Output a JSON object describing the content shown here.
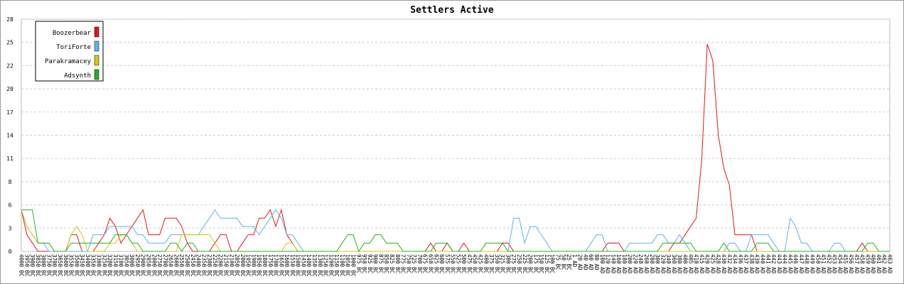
{
  "chart_data": {
    "type": "line",
    "title": "Settlers Active",
    "categories": [
      "4000 BC",
      "3950 BC",
      "3900 BC",
      "3850 BC",
      "3800 BC",
      "3750 BC",
      "3700 BC",
      "3650 BC",
      "3600 BC",
      "3550 BC",
      "3500 BC",
      "3450 BC",
      "3400 BC",
      "3350 BC",
      "3300 BC",
      "3250 BC",
      "3200 BC",
      "3150 BC",
      "3100 BC",
      "3050 BC",
      "3000 BC",
      "2950 BC",
      "2900 BC",
      "2850 BC",
      "2800 BC",
      "2750 BC",
      "2700 BC",
      "2650 BC",
      "2600 BC",
      "2550 BC",
      "2500 BC",
      "2450 BC",
      "2400 BC",
      "2350 BC",
      "2300 BC",
      "2250 BC",
      "2200 BC",
      "2150 BC",
      "2100 BC",
      "2050 BC",
      "2000 BC",
      "1950 BC",
      "1900 BC",
      "1850 BC",
      "1800 BC",
      "1750 BC",
      "1700 BC",
      "1650 BC",
      "1600 BC",
      "1550 BC",
      "1500 BC",
      "1450 BC",
      "1400 BC",
      "1350 BC",
      "1300 BC",
      "1250 BC",
      "1200 BC",
      "1150 BC",
      "1100 BC",
      "1050 BC",
      "1000 BC",
      "975 BC",
      "950 BC",
      "925 BC",
      "900 BC",
      "875 BC",
      "850 BC",
      "825 BC",
      "800 BC",
      "775 BC",
      "750 BC",
      "725 BC",
      "700 BC",
      "675 BC",
      "650 BC",
      "625 BC",
      "600 BC",
      "575 BC",
      "550 BC",
      "525 BC",
      "500 BC",
      "475 BC",
      "450 BC",
      "425 BC",
      "400 BC",
      "375 BC",
      "350 BC",
      "325 BC",
      "300 BC",
      "275 BC",
      "250 BC",
      "225 BC",
      "200 BC",
      "175 BC",
      "150 BC",
      "125 BC",
      "100 BC",
      "75 BC",
      "50 BC",
      "25 BC",
      "1 AD",
      "20 AD",
      "40 AD",
      "60 AD",
      "80 AD",
      "100 AD",
      "120 AD",
      "140 AD",
      "160 AD",
      "180 AD",
      "200 AD",
      "220 AD",
      "240 AD",
      "260 AD",
      "280 AD",
      "300 AD",
      "320 AD",
      "340 AD",
      "360 AD",
      "380 AD",
      "400 AD",
      "405 AD",
      "410 AD",
      "415 AD",
      "420 AD",
      "425 AD",
      "428 AD",
      "430 AD",
      "432 AD",
      "434 AD",
      "436 AD",
      "437 AD",
      "438 AD",
      "439 AD",
      "440 AD",
      "441 AD",
      "442 AD",
      "443 AD",
      "444 AD",
      "445 AD",
      "446 AD",
      "447 AD",
      "448 AD",
      "449 AD",
      "450 AD",
      "451 AD",
      "452 AD",
      "453 AD",
      "454 AD",
      "455 AD",
      "456 AD",
      "457 AD",
      "458 AD",
      "459 AD",
      "460 AD",
      "461 AD",
      "462 AD",
      "463 AD"
    ],
    "series": [
      {
        "name": "Boozerbear",
        "color": "#e0161d",
        "values": [
          5,
          2,
          1,
          0,
          0,
          0,
          0,
          0,
          0,
          2,
          2,
          0,
          0,
          0,
          1,
          2,
          4,
          3,
          1,
          2,
          3,
          4,
          5,
          2,
          2,
          2,
          4,
          4,
          4,
          3,
          1,
          0,
          0,
          0,
          0,
          1,
          2,
          2,
          0,
          0,
          1,
          2,
          2,
          4,
          4,
          5,
          3,
          5,
          2,
          1,
          0,
          0,
          0,
          0,
          0,
          0,
          0,
          0,
          0,
          0,
          0,
          0,
          0,
          0,
          0,
          0,
          0,
          0,
          0,
          0,
          0,
          0,
          0,
          0,
          1,
          0,
          0,
          1,
          0,
          0,
          1,
          0,
          0,
          0,
          0,
          0,
          0,
          1,
          1,
          0,
          0,
          0,
          0,
          0,
          0,
          0,
          0,
          0,
          0,
          0,
          0,
          0,
          0,
          0,
          0,
          0,
          1,
          1,
          1,
          0,
          0,
          0,
          0,
          0,
          0,
          0,
          0,
          0,
          1,
          1,
          2,
          3,
          4,
          11,
          25,
          23,
          14,
          10,
          8,
          2,
          2,
          2,
          2,
          0,
          0,
          0,
          0,
          0,
          0,
          0,
          0,
          0,
          0,
          0,
          0,
          0,
          0,
          0,
          0,
          0,
          0,
          0,
          1,
          0,
          0,
          0,
          0,
          0
        ]
      },
      {
        "name": "ToriForte",
        "color": "#5eb6e4",
        "values": [
          5,
          3,
          2,
          1,
          1,
          0,
          0,
          0,
          0,
          0,
          0,
          0,
          0,
          2,
          2,
          2,
          3,
          3,
          3,
          3,
          3,
          2,
          2,
          1,
          1,
          1,
          1,
          2,
          2,
          2,
          2,
          2,
          2,
          3,
          4,
          5,
          4,
          4,
          4,
          4,
          3,
          3,
          3,
          2,
          3,
          4,
          5,
          4,
          2,
          2,
          1,
          0,
          0,
          0,
          0,
          0,
          0,
          0,
          0,
          0,
          0,
          0,
          0,
          0,
          0,
          0,
          0,
          0,
          0,
          0,
          0,
          0,
          0,
          0,
          0,
          0,
          0,
          0,
          0,
          0,
          0,
          0,
          0,
          0,
          0,
          0,
          0,
          0,
          0,
          4,
          4,
          1,
          3,
          3,
          2,
          1,
          0,
          0,
          0,
          0,
          0,
          0,
          0,
          1,
          2,
          2,
          0,
          0,
          0,
          0,
          1,
          1,
          1,
          1,
          1,
          2,
          2,
          1,
          1,
          2,
          1,
          0,
          0,
          0,
          0,
          0,
          0,
          0,
          1,
          1,
          0,
          0,
          2,
          2,
          2,
          2,
          1,
          0,
          0,
          4,
          3,
          1,
          1,
          0,
          0,
          0,
          0,
          1,
          1,
          0,
          0,
          0,
          0,
          0,
          0,
          0,
          0,
          0
        ]
      },
      {
        "name": "Parakramacey",
        "color": "#d8c800",
        "values": [
          5,
          3,
          2,
          1,
          1,
          1,
          0,
          0,
          0,
          2,
          3,
          2,
          0,
          0,
          0,
          0,
          1,
          1,
          2,
          2,
          1,
          0,
          0,
          0,
          0,
          0,
          0,
          0,
          0,
          2,
          2,
          2,
          2,
          2,
          2,
          1,
          0,
          0,
          0,
          0,
          0,
          0,
          0,
          0,
          0,
          0,
          0,
          0,
          1,
          1,
          0,
          0,
          0,
          0,
          0,
          0,
          0,
          0,
          0,
          0,
          0,
          0,
          0,
          0,
          0,
          0,
          0,
          0,
          0,
          0,
          0,
          0,
          0,
          0,
          0,
          0,
          0,
          0,
          0,
          0,
          0,
          0,
          0,
          0,
          0,
          0,
          0,
          0,
          0,
          0,
          0,
          0,
          0,
          0,
          0,
          0,
          0,
          0,
          0,
          0,
          0,
          0,
          0,
          0,
          0,
          0,
          0,
          0,
          0,
          0,
          0,
          0,
          0,
          0,
          0,
          0,
          0,
          0,
          0,
          0,
          0,
          0,
          0,
          0,
          0,
          0,
          0,
          0,
          0,
          0,
          0,
          0,
          0,
          0,
          0,
          0,
          0,
          0,
          0,
          0,
          0,
          0,
          0,
          0,
          0,
          0,
          0,
          0,
          0,
          0,
          0,
          0,
          0,
          0,
          0,
          0,
          0,
          0
        ]
      },
      {
        "name": "Adsynth",
        "color": "#1fb51f",
        "values": [
          5,
          5,
          5,
          1,
          1,
          1,
          0,
          0,
          0,
          1,
          1,
          1,
          1,
          1,
          1,
          1,
          1,
          2,
          2,
          2,
          1,
          1,
          0,
          0,
          0,
          0,
          0,
          1,
          1,
          0,
          1,
          1,
          0,
          0,
          0,
          0,
          0,
          0,
          0,
          0,
          0,
          0,
          0,
          0,
          0,
          0,
          0,
          0,
          0,
          0,
          0,
          0,
          0,
          0,
          0,
          0,
          0,
          0,
          1,
          2,
          2,
          0,
          1,
          1,
          2,
          2,
          1,
          1,
          1,
          0,
          0,
          0,
          0,
          0,
          0,
          1,
          1,
          1,
          0,
          0,
          0,
          0,
          0,
          0,
          1,
          1,
          1,
          1,
          0,
          0,
          0,
          0,
          0,
          0,
          0,
          0,
          0,
          0,
          0,
          0,
          0,
          0,
          0,
          0,
          0,
          0,
          0,
          0,
          0,
          0,
          0,
          0,
          0,
          0,
          0,
          0,
          1,
          1,
          1,
          1,
          1,
          1,
          0,
          0,
          0,
          0,
          0,
          1,
          0,
          0,
          0,
          0,
          0,
          1,
          1,
          1,
          0,
          0,
          0,
          0,
          0,
          0,
          0,
          0,
          0,
          0,
          0,
          0,
          0,
          0,
          0,
          0,
          0,
          1,
          1,
          0,
          0,
          0
        ]
      }
    ],
    "ylim": [
      0,
      28
    ],
    "yticks": [
      0,
      {
        "value": 2.8,
        "label": "3"
      },
      {
        "value": 5.6,
        "label": "6"
      },
      {
        "value": 8.4,
        "label": "8"
      },
      {
        "value": 11.2,
        "label": "11"
      },
      14,
      {
        "value": 16.8,
        "label": "17"
      },
      {
        "value": 19.6,
        "label": "20"
      },
      {
        "value": 22.4,
        "label": "22"
      },
      {
        "value": 25.2,
        "label": "25"
      },
      28
    ],
    "grid": true,
    "legend": "top-left"
  }
}
